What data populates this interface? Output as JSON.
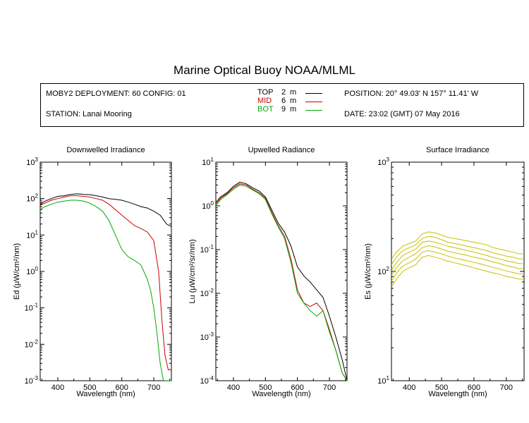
{
  "header": {
    "title": "Marine Optical Buoy NOAA/MLML",
    "deployment": "MOBY2 DEPLOYMENT: 60 CONFIG: 01",
    "station": "STATION: Lanai Mooring",
    "position": "POSITION: 20° 49.03' N   157° 11.41' W",
    "date": "DATE: 23:02 (GMT) 07 May 2016",
    "legend": [
      {
        "name": "TOP",
        "depth": "2",
        "unit": "m",
        "color": "#000000"
      },
      {
        "name": "MID",
        "depth": "6",
        "unit": "m",
        "color": "#cc0000"
      },
      {
        "name": "BOT",
        "depth": "9",
        "unit": "m",
        "color": "#00aa00"
      }
    ]
  },
  "chart_data": [
    {
      "type": "line",
      "title": "Downwelled Irradiance",
      "xlabel": "Wavelength (nm)",
      "ylabel": "Ed  (μW/cm²/nm)",
      "xlim": [
        345,
        755
      ],
      "xticks": [
        400,
        500,
        600,
        700
      ],
      "ylim": [
        0.001,
        1000
      ],
      "yscale": "log",
      "yticks": [
        {
          "value": 0.001,
          "base": "10",
          "exp": "-3"
        },
        {
          "value": 0.01,
          "base": "10",
          "exp": "-2"
        },
        {
          "value": 0.1,
          "base": "10",
          "exp": "-1"
        },
        {
          "value": 1,
          "base": "10",
          "exp": "0"
        },
        {
          "value": 10,
          "base": "10",
          "exp": "1"
        },
        {
          "value": 100,
          "base": "10",
          "exp": "2"
        },
        {
          "value": 1000,
          "base": "10",
          "exp": "3"
        }
      ],
      "series": [
        {
          "name": "TOP",
          "color": "#000000",
          "x": [
            345,
            360,
            380,
            400,
            420,
            440,
            460,
            480,
            500,
            520,
            540,
            560,
            580,
            600,
            620,
            640,
            660,
            680,
            700,
            720,
            740,
            755
          ],
          "y": [
            70,
            85,
            100,
            115,
            120,
            130,
            135,
            130,
            128,
            120,
            110,
            100,
            95,
            90,
            80,
            70,
            60,
            55,
            45,
            35,
            20,
            17
          ]
        },
        {
          "name": "MID",
          "color": "#cc0000",
          "x": [
            345,
            360,
            380,
            400,
            420,
            440,
            460,
            480,
            500,
            520,
            540,
            560,
            580,
            600,
            620,
            640,
            660,
            680,
            700,
            715,
            725,
            735,
            745,
            755
          ],
          "y": [
            65,
            75,
            90,
            100,
            110,
            120,
            120,
            115,
            110,
            100,
            90,
            70,
            50,
            35,
            25,
            18,
            15,
            12,
            7,
            1,
            0.05,
            0.005,
            0.002,
            0.002
          ]
        },
        {
          "name": "BOT",
          "color": "#00aa00",
          "x": [
            345,
            360,
            380,
            400,
            420,
            440,
            460,
            480,
            500,
            520,
            540,
            560,
            580,
            600,
            620,
            640,
            660,
            680,
            690,
            700,
            710,
            720,
            730,
            740,
            755
          ],
          "y": [
            50,
            60,
            70,
            80,
            85,
            90,
            90,
            85,
            75,
            60,
            45,
            25,
            10,
            4,
            2.5,
            2,
            1.5,
            0.6,
            0.3,
            0.1,
            0.02,
            0.003,
            0.001,
            0.001,
            0.001
          ]
        }
      ]
    },
    {
      "type": "line",
      "title": "Upwelled Radiance",
      "xlabel": "Wavelength (nm)",
      "ylabel": "Lu  (μW/cm²/sr/nm)",
      "xlim": [
        345,
        755
      ],
      "xticks": [
        400,
        500,
        600,
        700
      ],
      "ylim": [
        0.0001,
        10
      ],
      "yscale": "log",
      "yticks": [
        {
          "value": 0.0001,
          "base": "10",
          "exp": "-4"
        },
        {
          "value": 0.001,
          "base": "10",
          "exp": "-3"
        },
        {
          "value": 0.01,
          "base": "10",
          "exp": "-2"
        },
        {
          "value": 0.1,
          "base": "10",
          "exp": "-1"
        },
        {
          "value": 1,
          "base": "10",
          "exp": "0"
        },
        {
          "value": 10,
          "base": "10",
          "exp": "1"
        }
      ],
      "series": [
        {
          "name": "TOP",
          "color": "#000000",
          "x": [
            345,
            360,
            380,
            400,
            420,
            440,
            460,
            480,
            500,
            520,
            540,
            560,
            580,
            600,
            620,
            640,
            660,
            680,
            700,
            720,
            740,
            755
          ],
          "y": [
            1.2,
            1.6,
            2.0,
            2.8,
            3.5,
            3.2,
            2.6,
            2.2,
            1.6,
            0.8,
            0.4,
            0.25,
            0.12,
            0.04,
            0.025,
            0.018,
            0.012,
            0.008,
            0.003,
            0.001,
            0.0003,
            0.0001
          ]
        },
        {
          "name": "MID",
          "color": "#cc0000",
          "x": [
            345,
            360,
            380,
            400,
            420,
            440,
            460,
            480,
            500,
            520,
            540,
            560,
            580,
            600,
            620,
            640,
            660,
            680,
            700,
            720,
            740,
            755
          ],
          "y": [
            1.1,
            1.5,
            1.9,
            2.6,
            3.2,
            3.0,
            2.4,
            2.0,
            1.5,
            0.7,
            0.35,
            0.2,
            0.06,
            0.012,
            0.006,
            0.005,
            0.006,
            0.004,
            0.0015,
            0.0005,
            0.00015,
            0.0001
          ]
        },
        {
          "name": "BOT",
          "color": "#00aa00",
          "x": [
            345,
            360,
            380,
            400,
            420,
            440,
            460,
            480,
            500,
            520,
            540,
            560,
            580,
            600,
            620,
            640,
            660,
            680,
            700,
            720,
            740,
            755
          ],
          "y": [
            1.0,
            1.4,
            1.8,
            2.4,
            3.0,
            2.8,
            2.3,
            1.9,
            1.4,
            0.65,
            0.33,
            0.18,
            0.05,
            0.01,
            0.006,
            0.004,
            0.003,
            0.004,
            0.0013,
            0.0005,
            0.00015,
            0.0001
          ]
        }
      ]
    },
    {
      "type": "line",
      "title": "Surface Irradiance",
      "xlabel": "Wavelength (nm)",
      "ylabel": "Es  (μW/cm²/nm)",
      "xlim": [
        345,
        755
      ],
      "xticks": [
        400,
        500,
        600,
        700
      ],
      "ylim": [
        10,
        1000
      ],
      "yscale": "log",
      "yticks": [
        {
          "value": 10,
          "base": "10",
          "exp": "1"
        },
        {
          "value": 100,
          "base": "10",
          "exp": "2"
        },
        {
          "value": 1000,
          "base": "10",
          "exp": "3"
        }
      ],
      "series": [
        {
          "color": "#c8c000",
          "x": [
            345,
            360,
            380,
            400,
            420,
            440,
            460,
            480,
            500,
            520,
            540,
            560,
            580,
            600,
            620,
            640,
            660,
            680,
            700,
            720,
            740,
            755
          ],
          "y": [
            130,
            150,
            170,
            180,
            190,
            220,
            230,
            225,
            215,
            205,
            200,
            195,
            190,
            185,
            180,
            175,
            165,
            160,
            155,
            150,
            145,
            145
          ]
        },
        {
          "color": "#c8c000",
          "x": [
            345,
            360,
            380,
            400,
            420,
            440,
            460,
            480,
            500,
            520,
            540,
            560,
            580,
            600,
            620,
            640,
            660,
            680,
            700,
            720,
            740,
            755
          ],
          "y": [
            115,
            135,
            155,
            165,
            175,
            200,
            210,
            205,
            195,
            185,
            180,
            175,
            170,
            165,
            160,
            155,
            148,
            143,
            138,
            135,
            130,
            130
          ]
        },
        {
          "color": "#c8c000",
          "x": [
            345,
            360,
            380,
            400,
            420,
            440,
            460,
            480,
            500,
            520,
            540,
            560,
            580,
            600,
            620,
            640,
            660,
            680,
            700,
            720,
            740,
            755
          ],
          "y": [
            102,
            120,
            140,
            150,
            160,
            185,
            190,
            185,
            178,
            170,
            165,
            160,
            155,
            150,
            145,
            140,
            134,
            130,
            125,
            122,
            118,
            118
          ]
        },
        {
          "color": "#c8c000",
          "x": [
            345,
            360,
            380,
            400,
            420,
            440,
            460,
            480,
            500,
            520,
            540,
            560,
            580,
            600,
            620,
            640,
            660,
            680,
            700,
            720,
            740,
            755
          ],
          "y": [
            92,
            108,
            125,
            135,
            145,
            165,
            172,
            168,
            160,
            153,
            148,
            144,
            140,
            135,
            131,
            127,
            122,
            118,
            113,
            110,
            106,
            106
          ]
        },
        {
          "color": "#c8c000",
          "x": [
            345,
            360,
            380,
            400,
            420,
            440,
            460,
            480,
            500,
            520,
            540,
            560,
            580,
            600,
            620,
            640,
            660,
            680,
            700,
            720,
            740,
            755
          ],
          "y": [
            82,
            96,
            112,
            120,
            130,
            150,
            155,
            150,
            145,
            138,
            133,
            129,
            125,
            121,
            117,
            113,
            109,
            105,
            101,
            98,
            95,
            95
          ]
        },
        {
          "color": "#c8c000",
          "x": [
            345,
            360,
            380,
            400,
            420,
            440,
            460,
            480,
            500,
            520,
            540,
            560,
            580,
            600,
            620,
            640,
            660,
            680,
            700,
            720,
            740,
            755
          ],
          "y": [
            72,
            85,
            100,
            108,
            115,
            135,
            140,
            135,
            130,
            124,
            120,
            116,
            112,
            108,
            104,
            100,
            97,
            94,
            90,
            88,
            85,
            85
          ]
        }
      ]
    }
  ]
}
